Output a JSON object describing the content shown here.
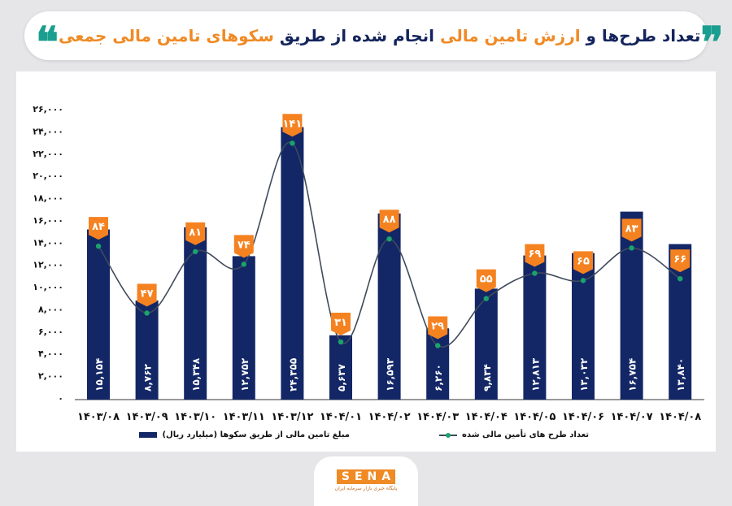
{
  "header": {
    "title_segments": [
      {
        "text": "تعداد طرح‌ها و ",
        "highlight": false
      },
      {
        "text": "ارزش تامین مالی",
        "highlight": true
      },
      {
        "text": " انجام شده از طریق ",
        "highlight": false
      },
      {
        "text": "سکوهای تامین مالی جمعی",
        "highlight": true
      }
    ],
    "quote_open": "❞",
    "quote_close": "❝"
  },
  "colors": {
    "bar": "#132766",
    "tag": "#f58220",
    "line": "#3f4a5c",
    "dot": "#1aa36b",
    "title_highlight": "#f08a24",
    "quote": "#1a9e8f"
  },
  "chart_data": {
    "type": "bar+line",
    "categories": [
      "۱۴۰۳/۰۸",
      "۱۴۰۳/۰۹",
      "۱۴۰۳/۱۰",
      "۱۴۰۳/۱۱",
      "۱۴۰۳/۱۲",
      "۱۴۰۴/۰۱",
      "۱۴۰۴/۰۲",
      "۱۴۰۴/۰۳",
      "۱۴۰۴/۰۴",
      "۱۴۰۴/۰۵",
      "۱۴۰۴/۰۶",
      "۱۴۰۴/۰۷",
      "۱۴۰۴/۰۸"
    ],
    "series": [
      {
        "name": "مبلغ تامین مالی از طریق سکوها (میلیارد ریال)",
        "type": "bar",
        "values": [
          15154,
          8762,
          15348,
          12752,
          24355,
          5637,
          16593,
          6260,
          9834,
          12813,
          13032,
          16754,
          13840
        ],
        "value_labels": [
          "۱۵,۱۵۴",
          "۸,۷۶۲",
          "۱۵,۳۴۸",
          "۱۲,۷۵۲",
          "۲۴,۳۵۵",
          "۵,۶۳۷",
          "۱۶,۵۹۳",
          "۶,۲۶۰",
          "۹,۸۳۴",
          "۱۲,۸۱۳",
          "۱۳,۰۳۲",
          "۱۶,۷۵۴",
          "۱۳,۸۴۰"
        ]
      },
      {
        "name": "تعداد طرح های تأمین مالی شده",
        "type": "line",
        "values": [
          84,
          47,
          81,
          74,
          141,
          31,
          88,
          29,
          55,
          69,
          65,
          83,
          66
        ],
        "value_labels": [
          "۸۴",
          "۴۷",
          "۸۱",
          "۷۴",
          "۱۴۱",
          "۳۱",
          "۸۸",
          "۲۹",
          "۵۵",
          "۶۹",
          "۶۵",
          "۸۳",
          "۶۶"
        ]
      }
    ],
    "ylim": [
      0,
      26000
    ],
    "y2lim": [
      0,
      160
    ],
    "y_ticks": [
      0,
      2000,
      4000,
      6000,
      8000,
      10000,
      12000,
      14000,
      16000,
      18000,
      20000,
      22000,
      24000,
      26000
    ],
    "y_tick_labels": [
      "۰",
      "۲,۰۰۰",
      "۴,۰۰۰",
      "۶,۰۰۰",
      "۸,۰۰۰",
      "۱۰,۰۰۰",
      "۱۲,۰۰۰",
      "۱۴,۰۰۰",
      "۱۶,۰۰۰",
      "۱۸,۰۰۰",
      "۲۰,۰۰۰",
      "۲۲,۰۰۰",
      "۲۴,۰۰۰",
      "۲۶,۰۰۰"
    ],
    "grid": false,
    "legend_position": "bottom"
  },
  "logo": {
    "text": "SENA",
    "subtitle": "پایگاه خبری بازار سرمایه ایران"
  }
}
